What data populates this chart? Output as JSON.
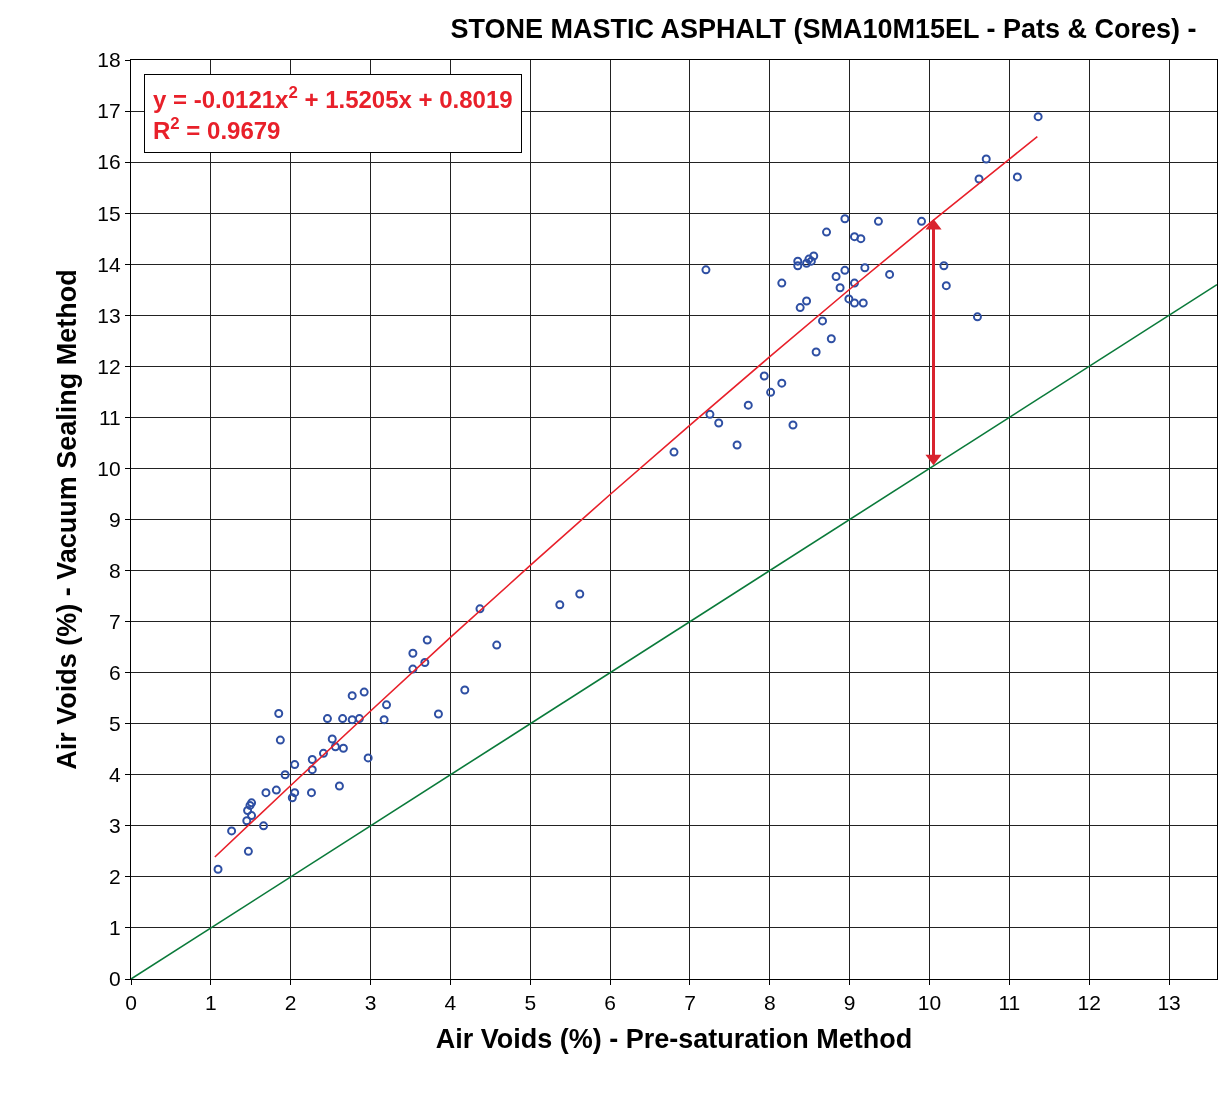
{
  "chart_data": {
    "type": "scatter",
    "title": "STONE MASTIC ASPHALT (SMA10M15EL - Pats & Cores) -",
    "xlabel": "Air Voids (%) - Pre-saturation Method",
    "ylabel": "Air Voids (%) - Vacuum Sealing Method",
    "xlim": [
      0,
      13.6
    ],
    "ylim": [
      0,
      18
    ],
    "xticks": [
      0,
      1,
      2,
      3,
      4,
      5,
      6,
      7,
      8,
      9,
      10,
      11,
      12,
      13
    ],
    "yticks": [
      0,
      1,
      2,
      3,
      4,
      5,
      6,
      7,
      8,
      9,
      10,
      11,
      12,
      13,
      14,
      15,
      16,
      17,
      18
    ],
    "grid": true,
    "annotations": [
      "y = -0.0121x$^{2}$ + 1.5205x + 0.8019",
      "R$^{2}$ = 0.9679"
    ],
    "series": [
      {
        "marker": "circle",
        "color": "#2e4fa3",
        "x": [
          1.09,
          1.26,
          1.47,
          1.45,
          1.46,
          1.49,
          1.51,
          1.51,
          1.66,
          1.69,
          1.82,
          1.93,
          1.85,
          1.87,
          2.02,
          2.05,
          2.05,
          2.26,
          2.27,
          2.27,
          2.41,
          2.46,
          2.52,
          2.56,
          2.61,
          2.65,
          2.66,
          2.77,
          2.77,
          2.86,
          2.92,
          2.97,
          3.17,
          3.2,
          3.53,
          3.53,
          3.68,
          3.71,
          3.85,
          4.18,
          4.37,
          4.58,
          5.37,
          5.62,
          6.8,
          7.2,
          7.25,
          7.36,
          7.59,
          7.73,
          7.93,
          8.01,
          8.15,
          8.29,
          8.15,
          8.38,
          8.46,
          8.35,
          8.35,
          8.46,
          8.49,
          8.52,
          8.55,
          8.58,
          8.66,
          8.77,
          8.71,
          8.83,
          8.88,
          8.94,
          8.94,
          8.99,
          9.06,
          9.06,
          9.06,
          9.14,
          9.17,
          9.19,
          9.36,
          9.5,
          9.9,
          10.18,
          10.21,
          10.6,
          10.62,
          10.71,
          11.1,
          11.36
        ],
        "values": [
          2.15,
          2.9,
          2.5,
          3.1,
          3.3,
          3.4,
          3.45,
          3.2,
          3.0,
          3.65,
          3.7,
          4.0,
          5.2,
          4.68,
          3.55,
          3.65,
          4.2,
          3.65,
          4.1,
          4.3,
          4.42,
          5.1,
          4.7,
          4.55,
          3.78,
          5.1,
          4.52,
          5.55,
          5.08,
          5.1,
          5.62,
          4.33,
          5.08,
          5.37,
          6.38,
          6.07,
          6.2,
          6.64,
          5.19,
          5.66,
          7.25,
          6.54,
          7.33,
          7.54,
          10.32,
          13.89,
          11.06,
          10.89,
          10.46,
          11.24,
          11.81,
          11.49,
          11.67,
          10.85,
          13.63,
          13.15,
          13.28,
          14.06,
          13.97,
          14.02,
          14.1,
          14.06,
          14.16,
          12.28,
          12.89,
          12.54,
          14.63,
          13.76,
          13.54,
          13.88,
          14.89,
          13.32,
          13.63,
          13.24,
          14.54,
          14.5,
          13.24,
          13.93,
          14.84,
          13.8,
          14.84,
          13.97,
          13.58,
          12.97,
          15.67,
          16.06,
          15.71,
          16.89
        ]
      },
      {
        "type": "line",
        "marker": "none",
        "color": "#e8202a",
        "x": [
          1.05,
          2,
          3,
          4,
          5,
          6,
          7,
          8,
          9,
          10,
          11,
          11.35
        ],
        "values": [
          2.39,
          3.79,
          5.25,
          6.69,
          8.1,
          9.49,
          10.85,
          12.19,
          13.51,
          14.8,
          16.06,
          16.5
        ]
      },
      {
        "type": "line",
        "marker": "none",
        "color": "#0a7a3a",
        "x": [
          0,
          13.6
        ],
        "values": [
          0,
          13.6
        ]
      },
      {
        "type": "line",
        "marker": "triangle",
        "color": "#d9232e",
        "x": [
          10.05,
          10.05
        ],
        "values": [
          10.2,
          14.75
        ]
      }
    ]
  }
}
